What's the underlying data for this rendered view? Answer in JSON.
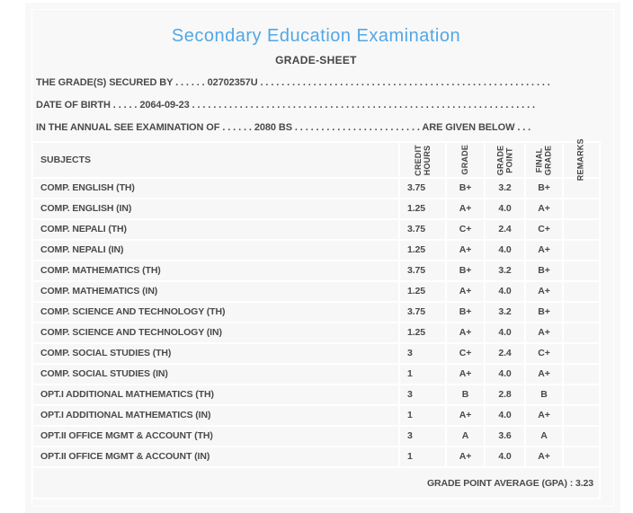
{
  "page": {
    "title": "Secondary Education Examination",
    "subtitle": "GRADE-SHEET"
  },
  "info": {
    "secured_by": {
      "label": "THE GRADE(S) SECURED BY",
      "dots_a": " . . . . . . ",
      "value": "02702357U",
      "dots_b": " . . . . . . . . . . . . . . . . . . . . . . . . . . . . . . . . . . . . . . . . . . . . . . . . . . . . . . ."
    },
    "date_of_birth": {
      "label": "DATE OF BIRTH",
      "dots_a": " . . . . . ",
      "value": "2064-09-23",
      "dots_b": " . . . . . . . . . . . . . . . . . . . . . . . . . . . . . . . . . . . . . . . . . . . . . . . . . . . . . . . . . . . . . . . . ."
    },
    "examination": {
      "label": "IN THE ANNUAL SEE EXAMINATION OF",
      "dots_a": " . . . . . . ",
      "value": "2080 BS",
      "dots_b": " . . . . . . . . . . . . . . . . . . . . . . . . ",
      "suffix": "ARE GIVEN BELOW . . ."
    }
  },
  "table": {
    "headers": {
      "subjects": "SUBJECTS",
      "credit_hours": "CREDIT\nHOURS",
      "grade": "GRADE",
      "grade_point": "GRADE\nPOINT",
      "final_grade": "FINAL\nGRADE",
      "remarks": "REMARKS"
    },
    "rows": [
      {
        "subject": "COMP. ENGLISH (TH)",
        "credit_hours": "3.75",
        "grade": "B+",
        "grade_point": "3.2",
        "final_grade": "B+",
        "remarks": ""
      },
      {
        "subject": "COMP. ENGLISH (IN)",
        "credit_hours": "1.25",
        "grade": "A+",
        "grade_point": "4.0",
        "final_grade": "A+",
        "remarks": ""
      },
      {
        "subject": "COMP. NEPALI (TH)",
        "credit_hours": "3.75",
        "grade": "C+",
        "grade_point": "2.4",
        "final_grade": "C+",
        "remarks": ""
      },
      {
        "subject": "COMP. NEPALI (IN)",
        "credit_hours": "1.25",
        "grade": "A+",
        "grade_point": "4.0",
        "final_grade": "A+",
        "remarks": ""
      },
      {
        "subject": "COMP. MATHEMATICS (TH)",
        "credit_hours": "3.75",
        "grade": "B+",
        "grade_point": "3.2",
        "final_grade": "B+",
        "remarks": ""
      },
      {
        "subject": "COMP. MATHEMATICS (IN)",
        "credit_hours": "1.25",
        "grade": "A+",
        "grade_point": "4.0",
        "final_grade": "A+",
        "remarks": ""
      },
      {
        "subject": "COMP. SCIENCE AND TECHNOLOGY (TH)",
        "credit_hours": "3.75",
        "grade": "B+",
        "grade_point": "3.2",
        "final_grade": "B+",
        "remarks": ""
      },
      {
        "subject": "COMP. SCIENCE AND TECHNOLOGY (IN)",
        "credit_hours": "1.25",
        "grade": "A+",
        "grade_point": "4.0",
        "final_grade": "A+",
        "remarks": ""
      },
      {
        "subject": "COMP. SOCIAL STUDIES (TH)",
        "credit_hours": "3",
        "grade": "C+",
        "grade_point": "2.4",
        "final_grade": "C+",
        "remarks": ""
      },
      {
        "subject": "COMP. SOCIAL STUDIES (IN)",
        "credit_hours": "1",
        "grade": "A+",
        "grade_point": "4.0",
        "final_grade": "A+",
        "remarks": ""
      },
      {
        "subject": "OPT.I ADDITIONAL MATHEMATICS (TH)",
        "credit_hours": "3",
        "grade": "B",
        "grade_point": "2.8",
        "final_grade": "B",
        "remarks": ""
      },
      {
        "subject": "OPT.I ADDITIONAL MATHEMATICS (IN)",
        "credit_hours": "1",
        "grade": "A+",
        "grade_point": "4.0",
        "final_grade": "A+",
        "remarks": ""
      },
      {
        "subject": "OPT.II OFFICE MGMT & ACCOUNT (TH)",
        "credit_hours": "3",
        "grade": "A",
        "grade_point": "3.6",
        "final_grade": "A",
        "remarks": ""
      },
      {
        "subject": "OPT.II OFFICE MGMT & ACCOUNT (IN)",
        "credit_hours": "1",
        "grade": "A+",
        "grade_point": "4.0",
        "final_grade": "A+",
        "remarks": ""
      }
    ]
  },
  "summary": {
    "gpa_line": "GRADE POINT AVERAGE (GPA) : 3.23"
  },
  "colors": {
    "title_blue": "#52a7e6",
    "body_text": "#4a4a4a",
    "panel_bg": "#f8f8f8",
    "cell_bg": "#f7f7f7",
    "gridline": "#ffffff"
  }
}
